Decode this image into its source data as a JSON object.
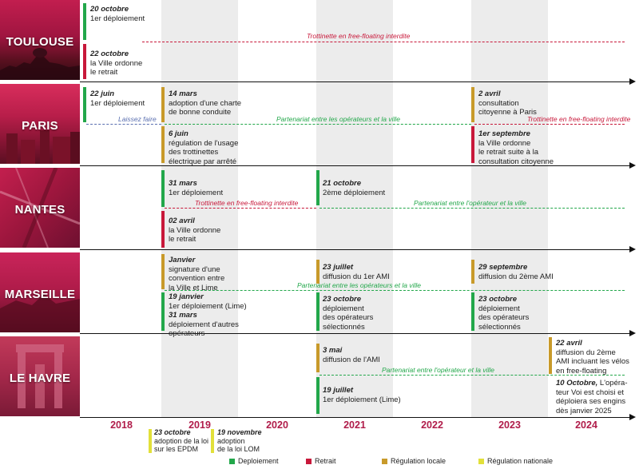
{
  "colors": {
    "deploiement": "#22a74a",
    "retrait": "#c8183a",
    "regulation_locale": "#c89a2a",
    "regulation_nationale": "#e2e03a",
    "accent": "#b01c4a"
  },
  "cities": {
    "toulouse": "TOULOUSE",
    "paris": "PARIS",
    "nantes": "NANTES",
    "marseille": "MARSEILLE",
    "lehavre": "LE HAVRE"
  },
  "years": [
    "2018",
    "2019",
    "2020",
    "2021",
    "2022",
    "2023",
    "2024"
  ],
  "toulouse": {
    "e1": {
      "date": "20 octobre",
      "text": "1er déploiement"
    },
    "e2": {
      "date": "22 octobre",
      "text1": "la Ville ordonne",
      "text2": "le retrait"
    },
    "ban": "Trottinette en free-floating interdite"
  },
  "paris": {
    "e1": {
      "date": "22 juin",
      "text": "1er déploiement"
    },
    "e2": {
      "date": "14 mars",
      "text1": "adoption d'une charte",
      "text2": "de bonne conduite"
    },
    "e3": {
      "date": "6 juin",
      "text1": "régulation de l'usage",
      "text2": "des trottinettes",
      "text3": "électrique par arrêté"
    },
    "e4": {
      "date": "2 avril",
      "text1": "consultation",
      "text2": "citoyenne à Paris"
    },
    "e5": {
      "date": "1er septembre",
      "text1": "la Ville ordonne",
      "text2": "le retrait suite à la",
      "text3": "consultation citoyenne"
    },
    "laisser": "Laissez faire",
    "partner": "Partenariat entre les opérateurs et la ville",
    "ban": "Trottinette en free-floating interdite"
  },
  "nantes": {
    "e1": {
      "date": "31 mars",
      "text": "1er déploiement"
    },
    "e2": {
      "date": "21 octobre",
      "text": "2ème déploiement"
    },
    "e3": {
      "date": "02 avril",
      "text1": "la Ville ordonne",
      "text2": "le retrait"
    },
    "ban": "Trottinette en free-floating interdite",
    "partner": "Partenariat entre l'opérateur et la ville"
  },
  "marseille": {
    "e1": {
      "date": "Janvier",
      "text1": "signature d'une",
      "text2": "convention entre",
      "text3": "la Ville et Lime"
    },
    "e2": {
      "date": "23 juillet",
      "text": "diffusion du 1er AMI"
    },
    "e3": {
      "date": "29 septembre",
      "text": "diffusion du 2ème AMI"
    },
    "e4": {
      "date": "19 janvier",
      "text": "1er déploiement (Lime)",
      "date2": "31 mars",
      "text2": "déploiement d'autres",
      "text3": "opérateurs"
    },
    "e5": {
      "date": "23 octobre",
      "text1": "déploiement",
      "text2": "des opérateurs",
      "text3": "sélectionnés"
    },
    "e6": {
      "date": "23 octobre",
      "text1": "déploiement",
      "text2": "des opérateurs",
      "text3": "sélectionnés"
    },
    "partner": "Partenariat entre les opérateurs et la ville"
  },
  "lehavre": {
    "e1": {
      "date": "3 mai",
      "text": "diffusion de l'AMI"
    },
    "e2": {
      "date": "22 avril",
      "text1": "diffusion du 2ème",
      "text2": "AMI incluant les vélos",
      "text3": "en free-floating"
    },
    "e3": {
      "date": "10 Octobre,",
      "text0": "L'opéra-",
      "text1": "teur Voi est choisi et",
      "text2": "déploiera ses engins",
      "text3": "dès janvier 2025"
    },
    "e4": {
      "date": "19 juillet",
      "text": "1er déploiement (Lime)"
    },
    "partner": "Partenariat entre l'opérateur et la ville"
  },
  "national": {
    "n1": {
      "date": "23 octobre",
      "text1": "adoption de la loi",
      "text2": "sur les EPDM"
    },
    "n2": {
      "date": "19 novembre",
      "text1": "adoption",
      "text2": "de la loi LOM"
    }
  },
  "legend": {
    "deploiement": "Deploiement",
    "retrait": "Retrait",
    "regulation_locale": "Régulation locale",
    "regulation_nationale": "Régulation nationale"
  }
}
